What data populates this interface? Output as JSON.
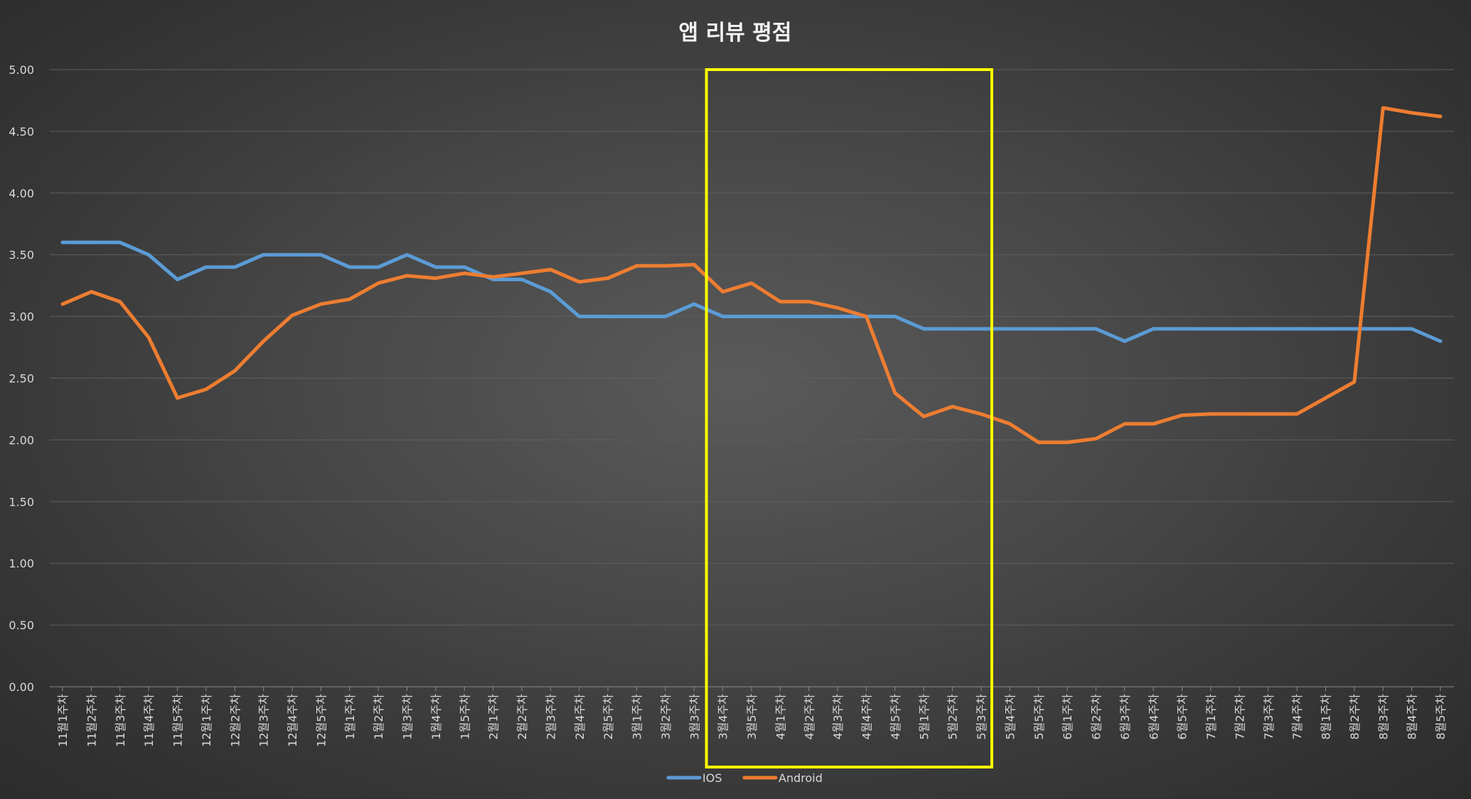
{
  "chart_data": {
    "type": "line",
    "title": "앱 리뷰 평점",
    "xlabel": "",
    "ylabel": "",
    "ylim": [
      0,
      5
    ],
    "yticks": [
      "0.00",
      "0.50",
      "1.00",
      "1.50",
      "2.00",
      "2.50",
      "3.00",
      "3.50",
      "4.00",
      "4.50",
      "5.00"
    ],
    "grid": true,
    "legend_position": "bottom",
    "categories": [
      "11월1주차",
      "11월2주차",
      "11월3주차",
      "11월4주차",
      "11월5주차",
      "12월1주차",
      "12월2주차",
      "12월3주차",
      "12월4주차",
      "12월5주차",
      "1월1주차",
      "1월2주차",
      "1월3주차",
      "1월4주차",
      "1월5주차",
      "2월1주차",
      "2월2주차",
      "2월3주차",
      "2월4주차",
      "2월5주차",
      "3월1주차",
      "3월2주차",
      "3월3주차",
      "3월4주차",
      "3월5주차",
      "4월1주차",
      "4월2주차",
      "4월3주차",
      "4월4주차",
      "4월5주차",
      "5월1주차",
      "5월2주차",
      "5월3주차",
      "5월4주차",
      "5월5주차",
      "6월1주차",
      "6월2주차",
      "6월3주차",
      "6월4주차",
      "6월5주차",
      "7월1주차",
      "7월2주차",
      "7월3주차",
      "7월4주차",
      "8월1주차",
      "8월2주차",
      "8월3주차",
      "8월4주차",
      "8월5주차"
    ],
    "series": [
      {
        "name": "IOS",
        "color": "#5b9bd5",
        "values": [
          3.6,
          3.6,
          3.6,
          3.5,
          3.3,
          3.4,
          3.4,
          3.5,
          3.5,
          3.5,
          3.4,
          3.4,
          3.5,
          3.4,
          3.4,
          3.3,
          3.3,
          3.2,
          3.0,
          3.0,
          3.0,
          3.0,
          3.1,
          3.0,
          3.0,
          3.0,
          3.0,
          3.0,
          3.0,
          3.0,
          2.9,
          2.9,
          2.9,
          2.9,
          2.9,
          2.9,
          2.9,
          2.8,
          2.9,
          2.9,
          2.9,
          2.9,
          2.9,
          2.9,
          2.9,
          2.9,
          2.9,
          2.9,
          2.8
        ]
      },
      {
        "name": "Android",
        "color": "#ed7d31",
        "values": [
          3.1,
          3.2,
          3.12,
          2.83,
          2.34,
          2.41,
          2.56,
          2.8,
          3.01,
          3.1,
          3.14,
          3.27,
          3.33,
          3.31,
          3.35,
          3.32,
          3.35,
          3.38,
          3.28,
          3.31,
          3.41,
          3.41,
          3.42,
          3.2,
          3.27,
          3.12,
          3.12,
          3.07,
          3.0,
          2.38,
          2.19,
          2.27,
          2.21,
          2.13,
          1.98,
          1.98,
          2.01,
          2.13,
          2.13,
          2.2,
          2.21,
          2.21,
          2.21,
          2.21,
          2.34,
          2.47,
          4.69,
          4.65,
          4.62
        ]
      }
    ],
    "annotations": [
      {
        "type": "highlight-box",
        "color": "#ffff00",
        "from_category": "3월4주차",
        "to_category": "5월3주차"
      }
    ],
    "background": "#444444"
  }
}
